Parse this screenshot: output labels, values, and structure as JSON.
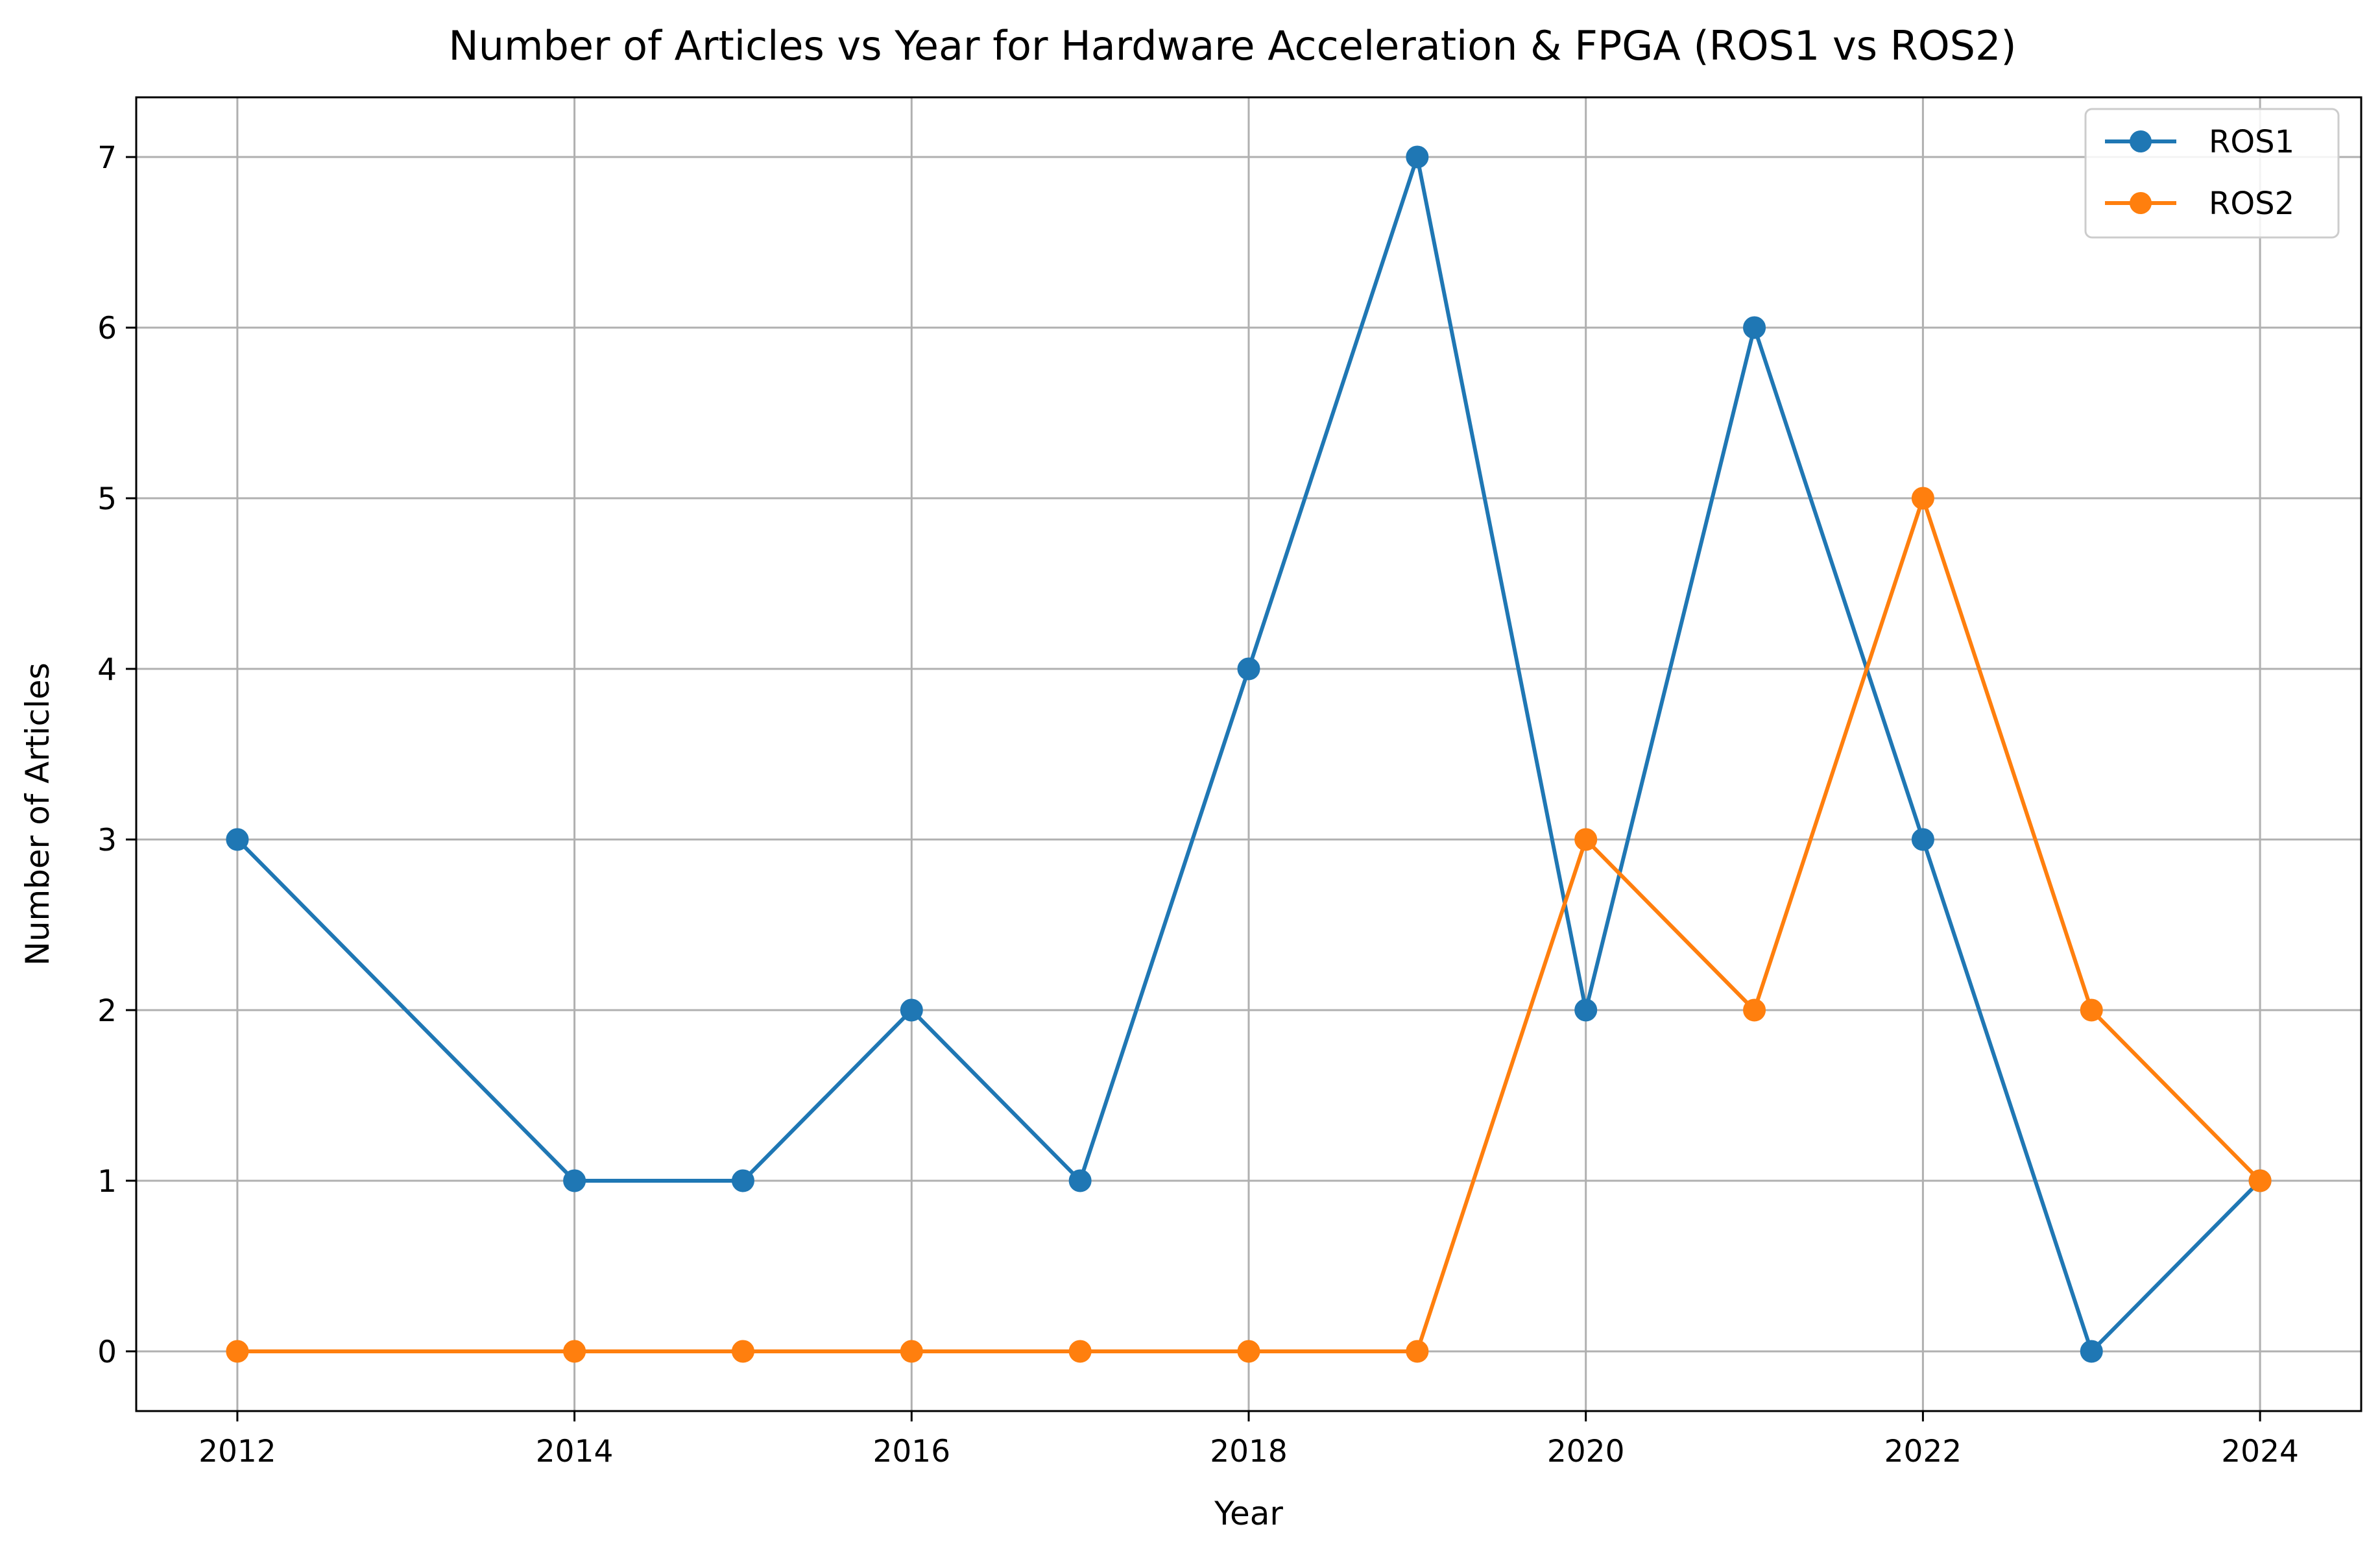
{
  "colors": {
    "ros1": "#1f77b4",
    "ros2": "#ff7f0e",
    "grid": "#b0b0b0",
    "background": "#ffffff"
  },
  "chart_data": {
    "type": "line",
    "title": "Number of Articles vs Year for Hardware Acceleration & FPGA (ROS1 vs ROS2)",
    "xlabel": "Year",
    "ylabel": "Number of Articles",
    "xlim": [
      2011.4,
      2024.6
    ],
    "ylim": [
      -0.35,
      7.35
    ],
    "xticks": [
      2012,
      2014,
      2016,
      2018,
      2020,
      2022,
      2024
    ],
    "yticks": [
      0,
      1,
      2,
      3,
      4,
      5,
      6,
      7
    ],
    "grid": true,
    "legend_position": "top-right",
    "marker": "circle",
    "series": [
      {
        "name": "ROS1",
        "color": "#1f77b4",
        "x": [
          2012,
          2014,
          2015,
          2016,
          2017,
          2018,
          2019,
          2020,
          2021,
          2022,
          2023,
          2024
        ],
        "y": [
          3,
          1,
          1,
          2,
          1,
          4,
          7,
          2,
          6,
          3,
          0,
          1
        ]
      },
      {
        "name": "ROS2",
        "color": "#ff7f0e",
        "x": [
          2012,
          2014,
          2015,
          2016,
          2017,
          2018,
          2019,
          2020,
          2021,
          2022,
          2023,
          2024
        ],
        "y": [
          0,
          0,
          0,
          0,
          0,
          0,
          0,
          3,
          2,
          5,
          2,
          1
        ]
      }
    ]
  }
}
